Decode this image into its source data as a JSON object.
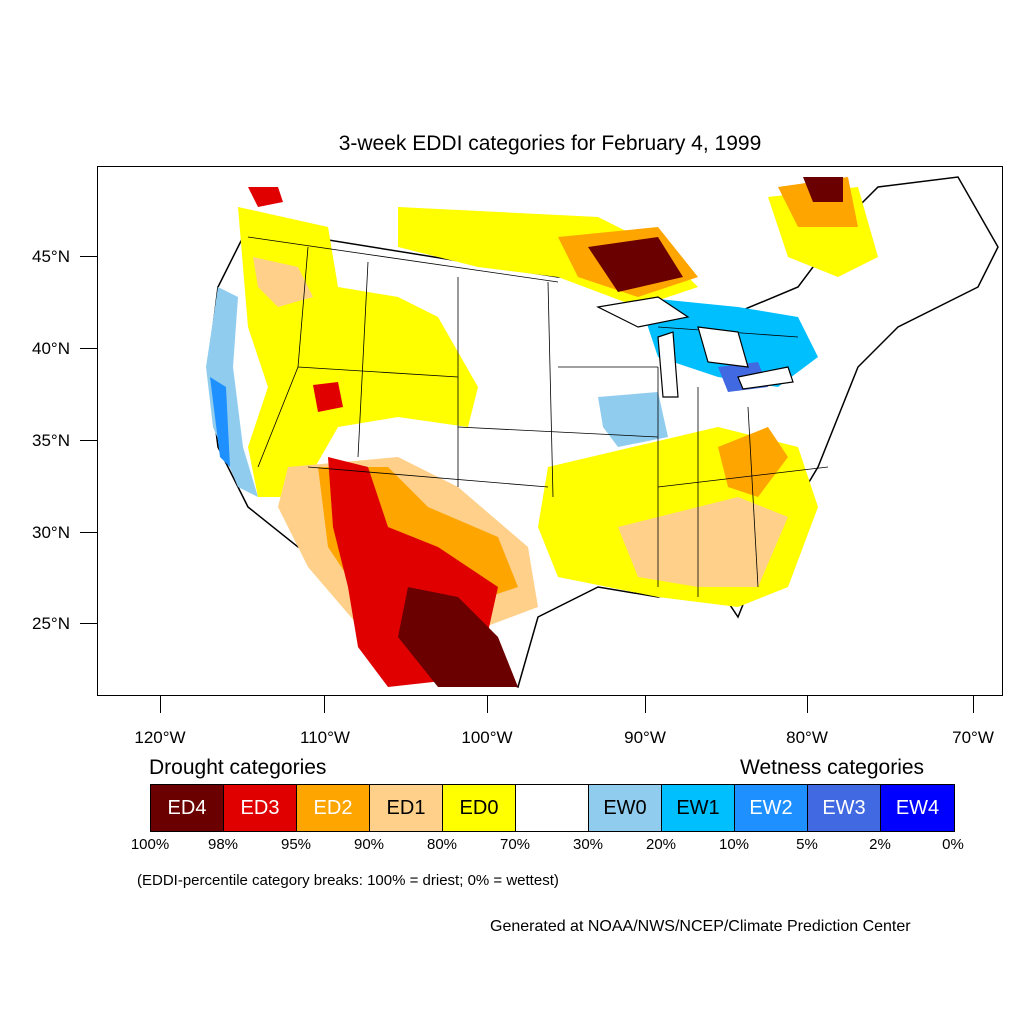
{
  "title": "3-week EDDI categories for February 4, 1999",
  "latitude_labels": [
    "45°N",
    "40°N",
    "35°N",
    "30°N",
    "25°N"
  ],
  "longitude_labels": [
    "120°W",
    "110°W",
    "100°W",
    "90°W",
    "80°W",
    "70°W"
  ],
  "legend": {
    "drought_title": "Drought categories",
    "wetness_title": "Wetness categories",
    "categories": [
      {
        "label": "ED4",
        "color": "#6b0000",
        "text_color": "#ffffff"
      },
      {
        "label": "ED3",
        "color": "#e00000",
        "text_color": "#ffffff"
      },
      {
        "label": "ED2",
        "color": "#ffa500",
        "text_color": "#ffffff"
      },
      {
        "label": "ED1",
        "color": "#ffd08a",
        "text_color": "#000000"
      },
      {
        "label": "ED0",
        "color": "#ffff00",
        "text_color": "#000000"
      },
      {
        "label": "",
        "color": "#ffffff",
        "text_color": "#000000"
      },
      {
        "label": "EW0",
        "color": "#90ccee",
        "text_color": "#000000"
      },
      {
        "label": "EW1",
        "color": "#00bfff",
        "text_color": "#000000"
      },
      {
        "label": "EW2",
        "color": "#1e90ff",
        "text_color": "#ffffff"
      },
      {
        "label": "EW3",
        "color": "#4169e1",
        "text_color": "#ffffff"
      },
      {
        "label": "EW4",
        "color": "#0000ff",
        "text_color": "#ffffff"
      }
    ],
    "percent_breaks": [
      "100%",
      "98%",
      "95%",
      "90%",
      "80%",
      "70%",
      "30%",
      "20%",
      "10%",
      "5%",
      "2%",
      "0%"
    ]
  },
  "note": "(EDDI-percentile category breaks: 100% = driest; 0% = wettest)",
  "credit": "Generated at NOAA/NWS/NCEP/Climate Prediction Center"
}
